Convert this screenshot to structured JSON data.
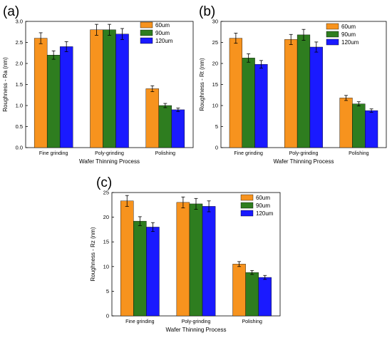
{
  "colors": {
    "60um": "#f7931e",
    "90um": "#2e7d1f",
    "120um": "#1a1aff"
  },
  "chart_data": [
    {
      "panel": "(a)",
      "type": "bar",
      "categories": [
        "Fine grinding",
        "Poly-grinding",
        "Polishing"
      ],
      "series": [
        {
          "name": "60um",
          "values": [
            2.6,
            2.8,
            1.4
          ],
          "errors": [
            0.13,
            0.13,
            0.07
          ]
        },
        {
          "name": "90um",
          "values": [
            2.2,
            2.8,
            1.0
          ],
          "errors": [
            0.1,
            0.13,
            0.05
          ]
        },
        {
          "name": "120um",
          "values": [
            2.4,
            2.7,
            0.9
          ],
          "errors": [
            0.12,
            0.13,
            0.04
          ]
        }
      ],
      "xlabel": "Wafer Thinning Process",
      "ylabel": "Roughness - Ra (nm)",
      "ylim": [
        0,
        3.0
      ],
      "yticks": [
        "0.0",
        "0.5",
        "1.0",
        "1.5",
        "2.0",
        "2.5",
        "3.0"
      ],
      "legend": "top-right"
    },
    {
      "panel": "(b)",
      "type": "bar",
      "categories": [
        "Fine grinding",
        "Poly-grinding",
        "Polishing"
      ],
      "series": [
        {
          "name": "60um",
          "values": [
            26.0,
            25.7,
            11.8
          ],
          "errors": [
            1.2,
            1.2,
            0.6
          ]
        },
        {
          "name": "90um",
          "values": [
            21.3,
            26.8,
            10.4
          ],
          "errors": [
            1.0,
            1.3,
            0.5
          ]
        },
        {
          "name": "120um",
          "values": [
            19.8,
            23.9,
            8.8
          ],
          "errors": [
            0.9,
            1.2,
            0.4
          ]
        }
      ],
      "xlabel": "Wafer Thinning Process",
      "ylabel": "Roughness - Rt (nm)",
      "ylim": [
        0,
        30
      ],
      "yticks": [
        "0",
        "5",
        "10",
        "15",
        "20",
        "25",
        "30"
      ],
      "legend": "top-right"
    },
    {
      "panel": "(c)",
      "type": "bar",
      "categories": [
        "Fine grinding",
        "Poly-grinding",
        "Polishing"
      ],
      "series": [
        {
          "name": "60um",
          "values": [
            23.3,
            23.0,
            10.5
          ],
          "errors": [
            1.1,
            1.1,
            0.5
          ]
        },
        {
          "name": "90um",
          "values": [
            19.2,
            22.7,
            8.8
          ],
          "errors": [
            0.9,
            1.1,
            0.4
          ]
        },
        {
          "name": "120um",
          "values": [
            18.0,
            22.2,
            7.8
          ],
          "errors": [
            0.9,
            1.1,
            0.4
          ]
        }
      ],
      "xlabel": "Wafer Thinning Process",
      "ylabel": "Roughness - Rz (nm)",
      "ylim": [
        0,
        25
      ],
      "yticks": [
        "0",
        "5",
        "10",
        "15",
        "20",
        "25"
      ],
      "legend": "top-right"
    }
  ]
}
